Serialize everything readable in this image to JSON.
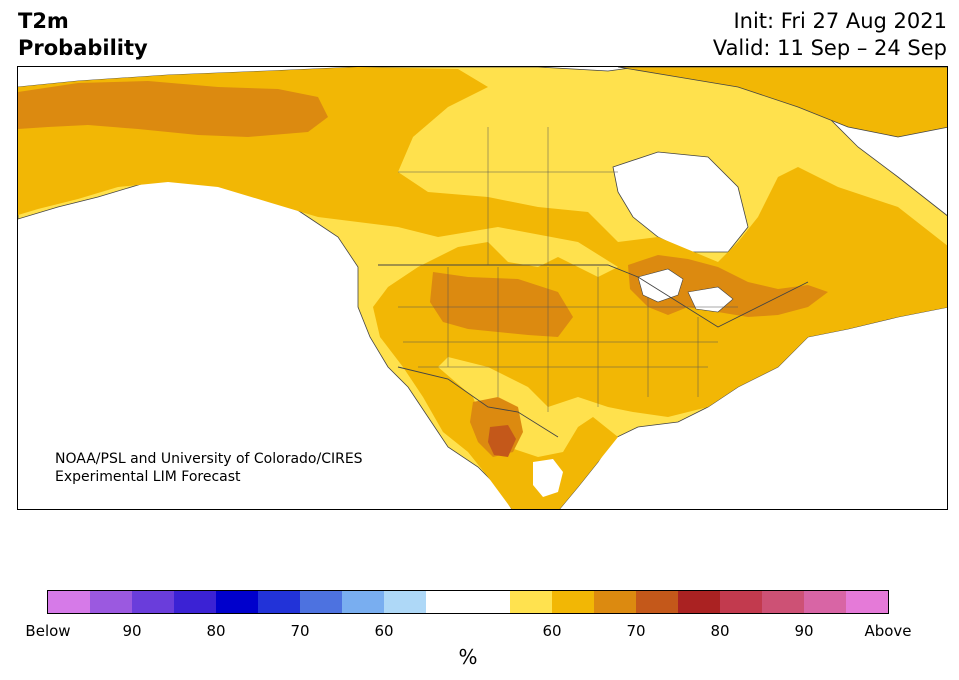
{
  "title": {
    "line1": "T2m",
    "line2": "Probability",
    "init": "Init: Fri 27 Aug 2021",
    "valid": "Valid: 11 Sep – 24 Sep"
  },
  "credit": {
    "line1": "NOAA/PSL and University of Colorado/CIRES",
    "line2": "Experimental LIM Forecast"
  },
  "colorbar": {
    "unit": "%",
    "labels": [
      "Below",
      "90",
      "80",
      "70",
      "60",
      "",
      "60",
      "70",
      "80",
      "90",
      "Above"
    ],
    "colors": [
      "#d67ae8",
      "#9b59e0",
      "#6a3ddb",
      "#3b22d4",
      "#0000cc",
      "#2233d8",
      "#4d72e0",
      "#79aef0",
      "#aed8f7",
      "#ffffff",
      "#ffffff",
      "#ffe24f",
      "#f2b705",
      "#dc8a10",
      "#c4581a",
      "#aa2222",
      "#c23a4e",
      "#cd5175",
      "#d865a5",
      "#e57ad8"
    ]
  },
  "legend": {
    "colors": {
      "land": "#ffe14d",
      "above60": "#f2b705",
      "above70": "#dc8a10",
      "above80": "#c4581a",
      "border": "#444444"
    }
  }
}
